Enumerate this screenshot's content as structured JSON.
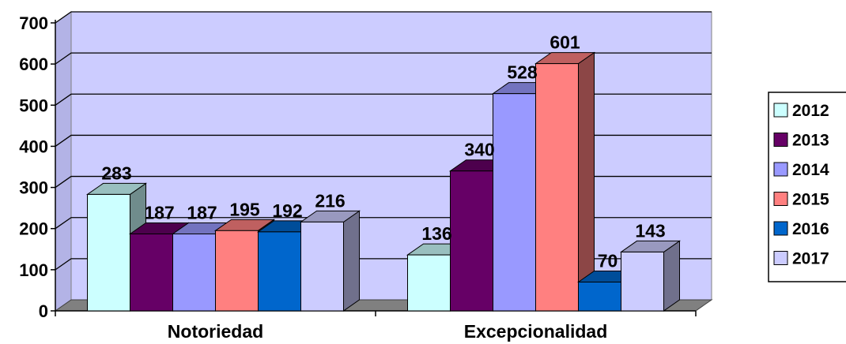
{
  "chart_data": {
    "type": "bar",
    "categories": [
      "Notoriedad",
      "Excepcionalidad"
    ],
    "series": [
      {
        "name": "2012",
        "values": [
          283,
          136
        ],
        "color": "#ccffff"
      },
      {
        "name": "2013",
        "values": [
          187,
          340
        ],
        "color": "#660066"
      },
      {
        "name": "2014",
        "values": [
          187,
          528
        ],
        "color": "#9999ff"
      },
      {
        "name": "2015",
        "values": [
          195,
          601
        ],
        "color": "#ff8080"
      },
      {
        "name": "2016",
        "values": [
          192,
          70
        ],
        "color": "#0066cc"
      },
      {
        "name": "2017",
        "values": [
          216,
          143
        ],
        "color": "#ccccff"
      }
    ],
    "ylim": [
      0,
      700
    ],
    "yticks": [
      "0",
      "100",
      "200",
      "300",
      "400",
      "500",
      "600",
      "700"
    ],
    "grid": true,
    "legend": "right",
    "plot_background": "#ccccff",
    "title": "",
    "xlabel": "",
    "ylabel": ""
  }
}
